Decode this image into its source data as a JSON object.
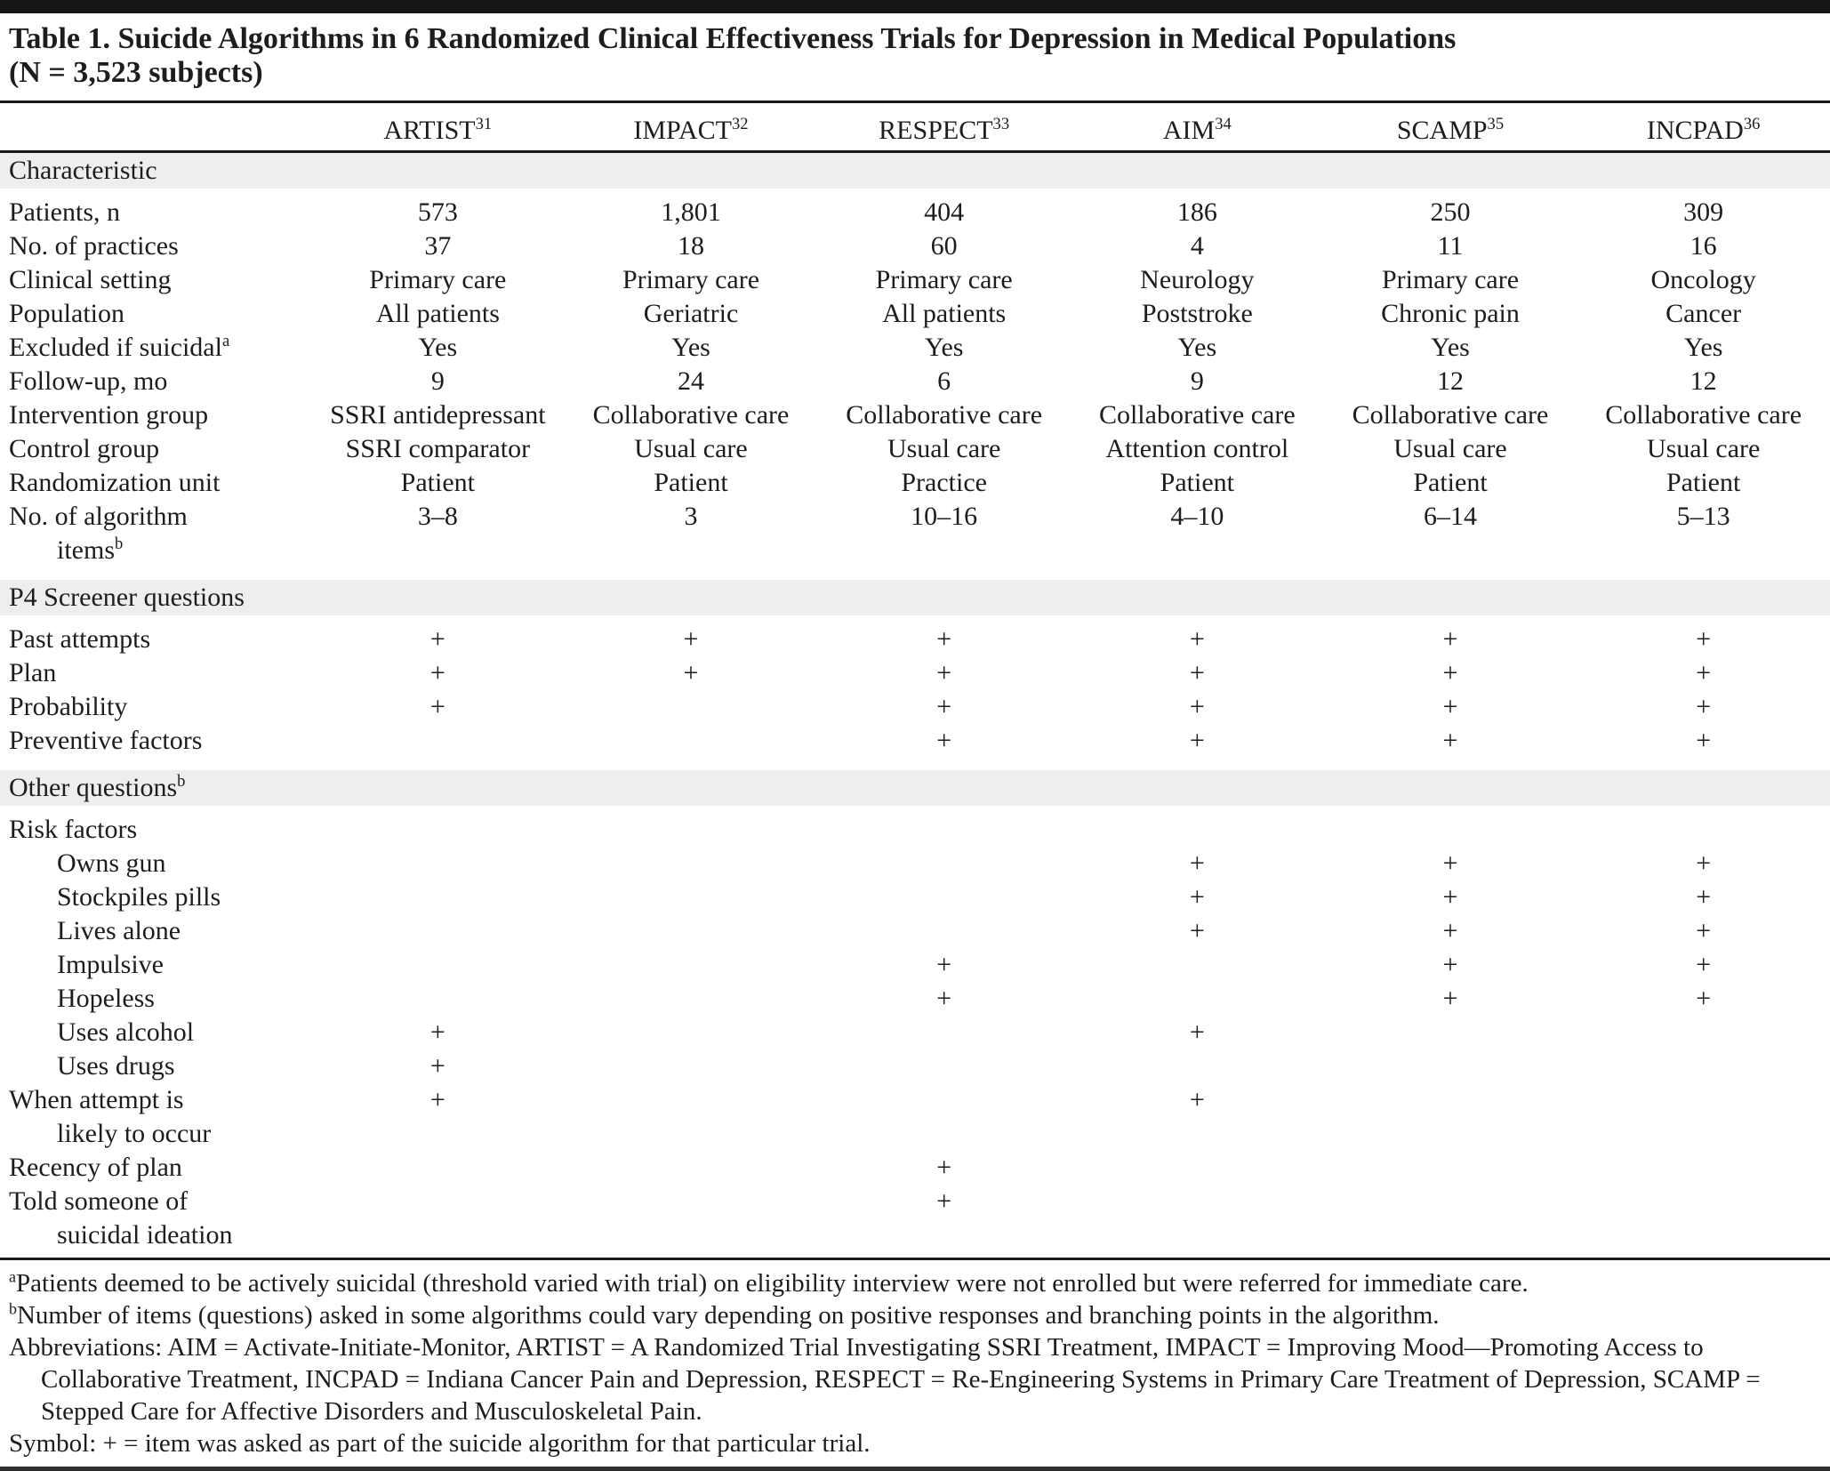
{
  "table": {
    "title_line1": "Table 1. Suicide Algorithms in 6 Randomized Clinical Effectiveness Trials for Depression in Medical Populations",
    "title_line2": "(N = 3,523 subjects)",
    "columns": [
      {
        "name": "ARTIST",
        "ref": "31"
      },
      {
        "name": "IMPACT",
        "ref": "32"
      },
      {
        "name": "RESPECT",
        "ref": "33"
      },
      {
        "name": "AIM",
        "ref": "34"
      },
      {
        "name": "SCAMP",
        "ref": "35"
      },
      {
        "name": "INCPAD",
        "ref": "36"
      }
    ],
    "sections": [
      {
        "header": "Characteristic",
        "header_sup": "",
        "rows": [
          {
            "label": "Patients, n",
            "values": [
              "573",
              "1,801",
              "404",
              "186",
              "250",
              "309"
            ]
          },
          {
            "label": "No. of practices",
            "values": [
              "37",
              "18",
              "60",
              "4",
              "11",
              "16"
            ]
          },
          {
            "label": "Clinical setting",
            "values": [
              "Primary care",
              "Primary care",
              "Primary care",
              "Neurology",
              "Primary care",
              "Oncology"
            ]
          },
          {
            "label": "Population",
            "values": [
              "All patients",
              "Geriatric",
              "All patients",
              "Poststroke",
              "Chronic pain",
              "Cancer"
            ]
          },
          {
            "label": "Excluded if suicidal",
            "sup": "a",
            "values": [
              "Yes",
              "Yes",
              "Yes",
              "Yes",
              "Yes",
              "Yes"
            ]
          },
          {
            "label": "Follow-up, mo",
            "values": [
              "9",
              "24",
              "6",
              "9",
              "12",
              "12"
            ]
          },
          {
            "label": "Intervention group",
            "values": [
              "SSRI antidepressant",
              "Collaborative care",
              "Collaborative care",
              "Collaborative care",
              "Collaborative care",
              "Collaborative care"
            ]
          },
          {
            "label": "Control group",
            "values": [
              "SSRI comparator",
              "Usual care",
              "Usual care",
              "Attention control",
              "Usual care",
              "Usual care"
            ]
          },
          {
            "label": "Randomization unit",
            "values": [
              "Patient",
              "Patient",
              "Practice",
              "Patient",
              "Patient",
              "Patient"
            ]
          },
          {
            "label": "No. of algorithm",
            "label2": "items",
            "sup": "b",
            "values": [
              "3–8",
              "3",
              "10–16",
              "4–10",
              "6–14",
              "5–13"
            ]
          }
        ]
      },
      {
        "header": "P4 Screener questions",
        "header_sup": "",
        "rows": [
          {
            "label": "Past attempts",
            "values": [
              "+",
              "+",
              "+",
              "+",
              "+",
              "+"
            ]
          },
          {
            "label": "Plan",
            "values": [
              "+",
              "+",
              "+",
              "+",
              "+",
              "+"
            ]
          },
          {
            "label": "Probability",
            "values": [
              "+",
              "",
              "+",
              "+",
              "+",
              "+"
            ]
          },
          {
            "label": "Preventive factors",
            "values": [
              "",
              "",
              "+",
              "+",
              "+",
              "+"
            ]
          }
        ]
      },
      {
        "header": "Other questions",
        "header_sup": "b",
        "rows": [
          {
            "label": "Risk factors",
            "values": [
              "",
              "",
              "",
              "",
              "",
              ""
            ]
          },
          {
            "label": "Owns gun",
            "indent": true,
            "values": [
              "",
              "",
              "",
              "+",
              "+",
              "+"
            ]
          },
          {
            "label": "Stockpiles pills",
            "indent": true,
            "values": [
              "",
              "",
              "",
              "+",
              "+",
              "+"
            ]
          },
          {
            "label": "Lives alone",
            "indent": true,
            "values": [
              "",
              "",
              "",
              "+",
              "+",
              "+"
            ]
          },
          {
            "label": "Impulsive",
            "indent": true,
            "values": [
              "",
              "",
              "+",
              "",
              "+",
              "+"
            ]
          },
          {
            "label": "Hopeless",
            "indent": true,
            "values": [
              "",
              "",
              "+",
              "",
              "+",
              "+"
            ]
          },
          {
            "label": "Uses alcohol",
            "indent": true,
            "values": [
              "+",
              "",
              "",
              "+",
              "",
              ""
            ]
          },
          {
            "label": "Uses drugs",
            "indent": true,
            "values": [
              "+",
              "",
              "",
              "",
              "",
              ""
            ]
          },
          {
            "label": "When attempt is",
            "label2": "likely to occur",
            "values": [
              "+",
              "",
              "",
              "+",
              "",
              ""
            ]
          },
          {
            "label": "Recency of plan",
            "values": [
              "",
              "",
              "+",
              "",
              "",
              ""
            ]
          },
          {
            "label": "Told someone of",
            "label2": "suicidal ideation",
            "values": [
              "",
              "",
              "+",
              "",
              "",
              ""
            ]
          }
        ]
      }
    ],
    "footnotes": [
      {
        "sup": "a",
        "text": "Patients deemed to be actively suicidal (threshold varied with trial) on eligibility interview were not enrolled but were referred for immediate care."
      },
      {
        "sup": "b",
        "text": "Number of items (questions) asked in some algorithms could vary depending on positive responses and branching points in the algorithm."
      },
      {
        "sup": "",
        "text": "Abbreviations: AIM = Activate-Initiate-Monitor, ARTIST = A Randomized Trial Investigating SSRI Treatment, IMPACT = Improving Mood—Promoting Access to Collaborative Treatment, INCPAD = Indiana Cancer Pain and Depression, RESPECT = Re-Engineering Systems in Primary Care Treatment of Depression, SCAMP = Stepped Care for Affective Disorders and Musculoskeletal Pain."
      },
      {
        "sup": "",
        "text": "Symbol: + = item was asked as part of the suicide algorithm for that particular trial."
      }
    ]
  }
}
